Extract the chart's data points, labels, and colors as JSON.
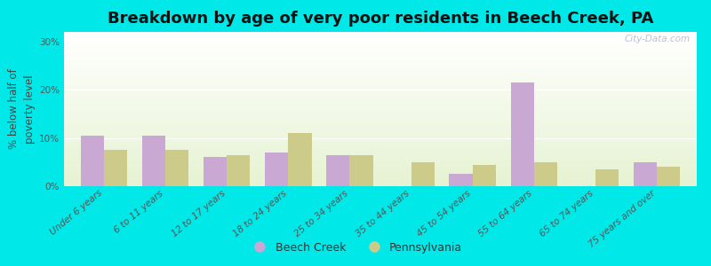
{
  "title": "Breakdown by age of very poor residents in Beech Creek, PA",
  "ylabel": "% below half of\npoverty level",
  "categories": [
    "Under 6 years",
    "6 to 11 years",
    "12 to 17 years",
    "18 to 24 years",
    "25 to 34 years",
    "35 to 44 years",
    "45 to 54 years",
    "55 to 64 years",
    "65 to 74 years",
    "75 years and over"
  ],
  "beech_creek": [
    10.5,
    10.5,
    6.0,
    7.0,
    6.5,
    0.0,
    2.5,
    21.5,
    0.0,
    5.0
  ],
  "pennsylvania": [
    7.5,
    7.5,
    6.5,
    11.0,
    6.5,
    5.0,
    4.5,
    5.0,
    3.5,
    4.0
  ],
  "beech_creek_color": "#c9a8d4",
  "pennsylvania_color": "#cccb8a",
  "background_outer": "#00e8e8",
  "yticks": [
    0,
    10,
    20,
    30
  ],
  "ytick_labels": [
    "0%",
    "10%",
    "20%",
    "30%"
  ],
  "ylim": [
    0,
    32
  ],
  "title_fontsize": 13,
  "axis_label_fontsize": 8.5,
  "tick_fontsize": 7.5,
  "legend_fontsize": 9,
  "bar_width": 0.38,
  "watermark": "City-Data.com"
}
